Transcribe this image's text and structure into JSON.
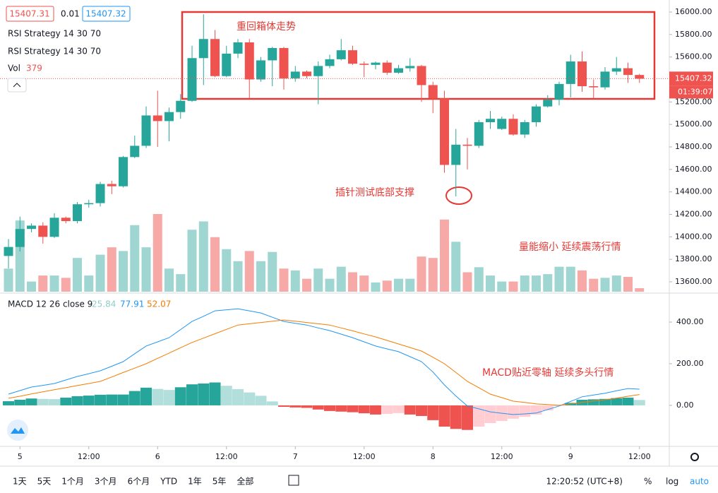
{
  "header": {
    "open_label": "15407.31",
    "change": "0.01",
    "close_label": "15407.32",
    "indicators": [
      "RSI Strategy 14 30 70",
      "RSI Strategy 14 30 70"
    ],
    "volume_label": "Vol"
  },
  "chart_data": [
    {
      "type": "candlestick",
      "xlim": [
        -0.74,
        57.6
      ],
      "ylim": [
        13512,
        16107
      ],
      "xticks": [
        {
          "value": 1,
          "label": "5"
        },
        {
          "value": 7,
          "label": "12:00"
        },
        {
          "value": 13,
          "label": "6"
        },
        {
          "value": 19,
          "label": "12:00"
        },
        {
          "value": 25,
          "label": "7"
        },
        {
          "value": 31,
          "label": "12:00"
        },
        {
          "value": 37,
          "label": "8"
        },
        {
          "value": 43,
          "label": "12:00"
        },
        {
          "value": 49,
          "label": "9"
        },
        {
          "value": 55,
          "label": "12:00"
        }
      ],
      "yticks": [
        {
          "value": 16000,
          "label": "16000.00"
        },
        {
          "value": 15800,
          "label": "15800.00"
        },
        {
          "value": 15600,
          "label": "15600.00"
        },
        {
          "value": 15400,
          "label": "15400.00"
        },
        {
          "value": 15200,
          "label": "15200.00"
        },
        {
          "value": 15000,
          "label": "15000.00"
        },
        {
          "value": 14800,
          "label": "14800.00"
        },
        {
          "value": 14600,
          "label": "14600.00"
        },
        {
          "value": 14400,
          "label": "14400.00"
        },
        {
          "value": 14200,
          "label": "14200.00"
        },
        {
          "value": 14000,
          "label": "14000.00"
        },
        {
          "value": 13800,
          "label": "13800.00"
        },
        {
          "value": 13600,
          "label": "13600.00"
        }
      ],
      "open": [
        13830,
        13910,
        14070,
        14100,
        14000,
        14170,
        14140,
        14290,
        14300,
        14470,
        14450,
        14710,
        14810,
        15080,
        15030,
        15110,
        15210,
        15590,
        15760,
        15430,
        15630,
        15730,
        15400,
        15570,
        15680,
        15410,
        15470,
        15430,
        15520,
        15580,
        15660,
        15540,
        15530,
        15550,
        15460,
        15500,
        15520,
        15350,
        15230,
        14640,
        14820,
        14810,
        15020,
        14960,
        15050,
        14910,
        15020,
        15160,
        15220,
        15360,
        15560,
        15340,
        15330,
        15470,
        15500,
        15440
      ],
      "high": [
        13980,
        14180,
        14120,
        14130,
        14210,
        14180,
        14310,
        14330,
        14490,
        14500,
        14720,
        14900,
        15160,
        15300,
        15150,
        15270,
        15700,
        15980,
        15840,
        15700,
        15760,
        15760,
        15600,
        15690,
        15690,
        15520,
        15480,
        15560,
        15620,
        15760,
        15700,
        15560,
        15560,
        15570,
        15530,
        15590,
        15530,
        15380,
        15300,
        14960,
        14880,
        15040,
        15120,
        15070,
        15090,
        15040,
        15180,
        15260,
        15380,
        15620,
        15650,
        15400,
        15510,
        15600,
        15550,
        15450
      ],
      "low": [
        13720,
        13870,
        14040,
        13940,
        13990,
        14120,
        14120,
        14260,
        14270,
        14380,
        14440,
        14700,
        14790,
        14800,
        14850,
        15050,
        15200,
        15350,
        15420,
        15420,
        15590,
        15230,
        15380,
        15340,
        15310,
        15380,
        15410,
        15180,
        15500,
        15570,
        15530,
        15420,
        15490,
        15440,
        15450,
        15470,
        15200,
        15100,
        14570,
        14360,
        14600,
        14790,
        14960,
        14950,
        14900,
        14880,
        14980,
        15150,
        15170,
        15240,
        15290,
        15230,
        15310,
        15440,
        15370,
        15370
      ],
      "close": [
        13910,
        14070,
        14100,
        14000,
        14170,
        14140,
        14290,
        14300,
        14470,
        14450,
        14710,
        14810,
        15080,
        15030,
        15110,
        15210,
        15590,
        15760,
        15430,
        15630,
        15730,
        15400,
        15570,
        15680,
        15410,
        15470,
        15430,
        15520,
        15580,
        15660,
        15540,
        15530,
        15550,
        15460,
        15500,
        15520,
        15350,
        15230,
        14640,
        14820,
        14810,
        15020,
        15050,
        15050,
        14910,
        15020,
        15160,
        15220,
        15360,
        15560,
        15340,
        15330,
        15470,
        15500,
        15440,
        15407.32
      ],
      "up_color": "#26a69a",
      "down_color": "#ef5350",
      "volume_up_color": "#9fd6d1",
      "volume_down_color": "#f6a9a7",
      "volume": [
        2500,
        7700,
        1100,
        1750,
        1750,
        1500,
        3650,
        1750,
        4000,
        4800,
        4400,
        7200,
        4800,
        8400,
        2500,
        1900,
        6700,
        7600,
        5900,
        4600,
        3300,
        4400,
        3300,
        4300,
        2500,
        2300,
        1400,
        2500,
        1400,
        2700,
        2100,
        1750,
        1000,
        1200,
        1400,
        1400,
        3800,
        3650,
        7800,
        5400,
        2100,
        2650,
        1750,
        1100,
        1100,
        1750,
        1750,
        1900,
        2700,
        2700,
        2300,
        1400,
        1500,
        1750,
        1600,
        379
      ],
      "last_price": {
        "value": 15407.32,
        "label": "15407.32"
      },
      "countdown": "01:39:07",
      "annotations": [
        "重回箱体走势",
        "插针测试底部支撑",
        "量能缩小  延续震荡行情"
      ]
    },
    {
      "type": "macd",
      "title": "MACD 12 26 close 9",
      "ylim": [
        -197,
        529
      ],
      "yticks": [
        {
          "value": 400,
          "label": "400.00"
        },
        {
          "value": 200,
          "label": "200.00"
        },
        {
          "value": 0,
          "label": "0.00"
        }
      ],
      "series": [
        {
          "values": [
            20,
            27,
            33,
            31,
            30,
            37,
            44,
            47,
            51,
            52,
            52,
            69,
            85,
            79,
            74,
            87,
            101,
            105,
            110,
            94,
            78,
            62,
            46,
            19,
            -7,
            -10,
            -12,
            -20,
            -27,
            -30,
            -33,
            -38,
            -44,
            -41,
            -37,
            -44,
            -51,
            -71,
            -102,
            -113,
            -118,
            -102,
            -85,
            -75,
            -64,
            -55,
            -44,
            -24,
            -3,
            12,
            27,
            29,
            31,
            35,
            37,
            25.84
          ],
          "colors": [
            "#26a69a",
            "#b2dfdb",
            "#ef5350",
            "#ffcdd2"
          ]
        },
        {
          "values": [
            54,
            71,
            88,
            96,
            105,
            122,
            139,
            152,
            166,
            188,
            210,
            248,
            285,
            305,
            325,
            364,
            403,
            428,
            454,
            459,
            464,
            454,
            444,
            423,
            403,
            394,
            386,
            372,
            359,
            342,
            325,
            305,
            285,
            271,
            258,
            234,
            210,
            160,
            98,
            45,
            -3,
            -17,
            -31,
            -38,
            -44,
            -41,
            -37,
            -20,
            -3,
            19,
            41,
            50,
            58,
            70,
            81,
            77.91
          ],
          "color": "#2196f3"
        },
        {
          "values": [
            34,
            44,
            55,
            65,
            75,
            85,
            95,
            105,
            115,
            136,
            158,
            179,
            200,
            226,
            251,
            277,
            302,
            323,
            344,
            365,
            386,
            392,
            398,
            404,
            410,
            404,
            398,
            392,
            386,
            372,
            358,
            343,
            329,
            312,
            295,
            278,
            261,
            231,
            200,
            158,
            115,
            85,
            54,
            37,
            20,
            14,
            7,
            4,
            0,
            7,
            14,
            21,
            27,
            35,
            44,
            52.07
          ],
          "color": "#f57c00"
        }
      ],
      "annotation": "MACD贴近零轴  延续多头行情"
    }
  ],
  "toolbar": {
    "ranges": [
      "1天",
      "5天",
      "1个月",
      "3个月",
      "6个月",
      "YTD",
      "1年",
      "5年",
      "全部"
    ],
    "time": "12:20:52 (UTC+8)",
    "options": [
      "%",
      "log",
      "auto"
    ]
  }
}
